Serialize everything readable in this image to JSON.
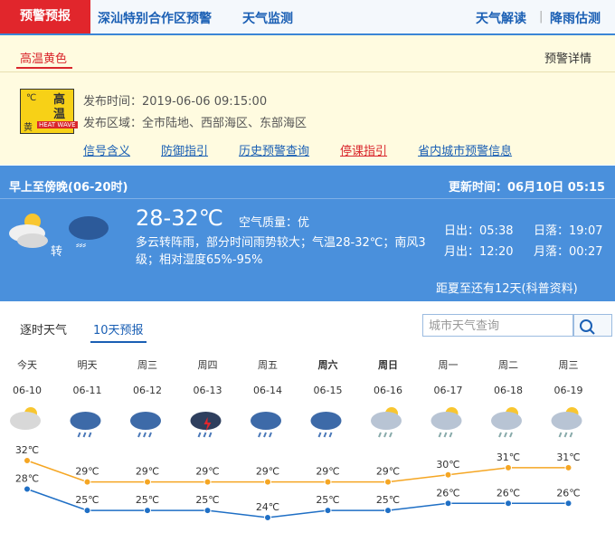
{
  "nav": {
    "tabs": [
      "预警预报",
      "深汕特别合作区预警",
      "天气监测"
    ],
    "right_links": [
      "天气解读",
      "降雨估测"
    ]
  },
  "warning": {
    "tab": "高温黄色",
    "details_link": "预警详情",
    "icon_top": [
      "高",
      "温"
    ],
    "icon_unit": "℃",
    "icon_level": "黄",
    "icon_en": "HEAT WAVE",
    "issue_time_label": "发布时间：",
    "issue_time": "2019-06-06 09:15:00",
    "area_label": "发布区域：",
    "area": "全市陆地、西部海区、东部海区",
    "links": [
      "信号含义",
      "防御指引",
      "历史预警查询",
      "停课指引",
      "省内城市预警信息"
    ]
  },
  "today": {
    "period": "早上至傍晚(06-20时)",
    "update_label": "更新时间：",
    "update_time": "06月10日 05:15",
    "turn": "转",
    "temp": "28-32℃",
    "aqi_label": "空气质量：",
    "aqi": "优",
    "desc": "多云转阵雨，部分时间雨势较大；气温28-32℃；南风3级；相对湿度65%-95%",
    "sunrise_label": "日出：",
    "sunrise": "05:38",
    "sunset_label": "日落：",
    "sunset": "19:07",
    "moonrise_label": "月出：",
    "moonrise": "12:20",
    "moonset_label": "月落：",
    "moonset": "00:27",
    "summer": "距夏至还有12天(科普资料)"
  },
  "forecast_tabs": [
    "逐时天气",
    "10天预报"
  ],
  "search_placeholder": "城市天气查询",
  "chart_data": {
    "type": "line",
    "weekdays": [
      "今天",
      "明天",
      "周三",
      "周四",
      "周五",
      "周六",
      "周日",
      "周一",
      "周二",
      "周三"
    ],
    "categories": [
      "06-10",
      "06-11",
      "06-12",
      "06-13",
      "06-14",
      "06-15",
      "06-16",
      "06-17",
      "06-18",
      "06-19"
    ],
    "series": [
      {
        "color": "#f5a623",
        "values": [
          32,
          29,
          29,
          29,
          29,
          29,
          29,
          30,
          31,
          31
        ],
        "value_labels": [
          "32℃",
          "29℃",
          "29℃",
          "29℃",
          "29℃",
          "29℃",
          "29℃",
          "30℃",
          "31℃",
          "31℃"
        ]
      },
      {
        "color": "#1f6fc5",
        "values": [
          28,
          25,
          25,
          25,
          24,
          25,
          25,
          26,
          26,
          26
        ],
        "value_labels": [
          "28℃",
          "25℃",
          "25℃",
          "25℃",
          "24℃",
          "25℃",
          "25℃",
          "26℃",
          "26℃",
          "26℃"
        ]
      }
    ]
  }
}
